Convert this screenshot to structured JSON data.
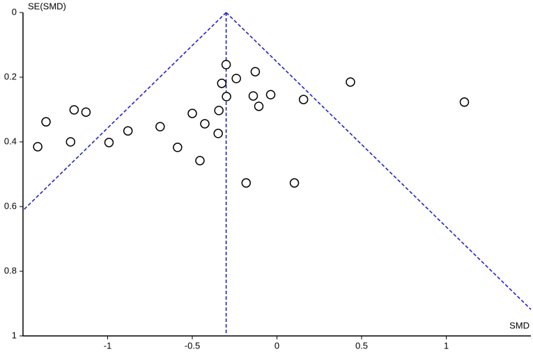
{
  "chart_data": {
    "type": "scatter",
    "x_label": "SMD",
    "y_label": "SE(SMD)",
    "x": [
      -0.3,
      -0.128,
      -0.24,
      -0.326,
      0.434,
      -0.298,
      -0.14,
      -0.037,
      0.157,
      -0.107,
      1.107,
      -1.198,
      -1.128,
      -0.343,
      -0.5,
      -1.364,
      -0.426,
      -0.69,
      -0.88,
      -0.347,
      -1.219,
      -0.992,
      -1.413,
      -0.587,
      -0.455,
      -0.182,
      0.103
    ],
    "y": [
      0.161,
      0.183,
      0.204,
      0.219,
      0.215,
      0.26,
      0.258,
      0.254,
      0.269,
      0.29,
      0.277,
      0.301,
      0.308,
      0.303,
      0.312,
      0.338,
      0.344,
      0.353,
      0.366,
      0.374,
      0.4,
      0.402,
      0.415,
      0.417,
      0.458,
      0.527,
      0.527
    ],
    "reference_lines": [
      {
        "x": [
          -0.3,
          -0.3
        ],
        "y": [
          0,
          1
        ]
      },
      {
        "x": [
          -0.3,
          -1.5
        ],
        "y": [
          0,
          0.612
        ]
      },
      {
        "x": [
          -0.3,
          1.5
        ],
        "y": [
          0,
          0.918
        ]
      }
    ],
    "reference_color": "#1f1fc8",
    "marker_color": "#000000",
    "xlim": [
      -1.5,
      1.5
    ],
    "ylim": [
      0,
      1
    ],
    "y_inverted": true,
    "xticks": [
      -1,
      -0.5,
      0,
      0.5,
      1
    ],
    "yticks": [
      0,
      0.2,
      0.4,
      0.6,
      0.8,
      1
    ]
  }
}
